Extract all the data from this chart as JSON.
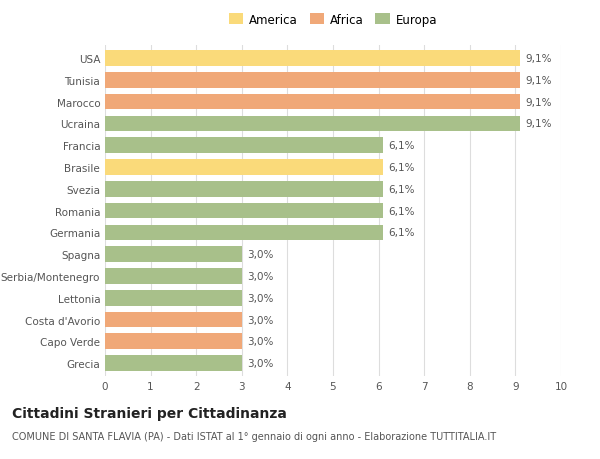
{
  "categories": [
    "USA",
    "Tunisia",
    "Marocco",
    "Ucraina",
    "Francia",
    "Brasile",
    "Svezia",
    "Romania",
    "Germania",
    "Spagna",
    "Serbia/Montenegro",
    "Lettonia",
    "Costa d'Avorio",
    "Capo Verde",
    "Grecia"
  ],
  "values": [
    9.1,
    9.1,
    9.1,
    9.1,
    6.1,
    6.1,
    6.1,
    6.1,
    6.1,
    3.0,
    3.0,
    3.0,
    3.0,
    3.0,
    3.0
  ],
  "labels": [
    "9,1%",
    "9,1%",
    "9,1%",
    "9,1%",
    "6,1%",
    "6,1%",
    "6,1%",
    "6,1%",
    "6,1%",
    "3,0%",
    "3,0%",
    "3,0%",
    "3,0%",
    "3,0%",
    "3,0%"
  ],
  "colors": [
    "#FADA7A",
    "#F0A878",
    "#F0A878",
    "#A8C08A",
    "#A8C08A",
    "#FADA7A",
    "#A8C08A",
    "#A8C08A",
    "#A8C08A",
    "#A8C08A",
    "#A8C08A",
    "#A8C08A",
    "#F0A878",
    "#F0A878",
    "#A8C08A"
  ],
  "legend_labels": [
    "America",
    "Africa",
    "Europa"
  ],
  "legend_colors": [
    "#FADA7A",
    "#F0A878",
    "#A8C08A"
  ],
  "title": "Cittadini Stranieri per Cittadinanza",
  "subtitle": "COMUNE DI SANTA FLAVIA (PA) - Dati ISTAT al 1° gennaio di ogni anno - Elaborazione TUTTITALIA.IT",
  "xlim": [
    0,
    10
  ],
  "xticks": [
    0,
    1,
    2,
    3,
    4,
    5,
    6,
    7,
    8,
    9,
    10
  ],
  "bg_color": "#FFFFFF",
  "grid_color": "#DDDDDD",
  "bar_height": 0.72,
  "label_fontsize": 7.5,
  "tick_fontsize": 7.5,
  "title_fontsize": 10,
  "subtitle_fontsize": 7.0,
  "legend_fontsize": 8.5
}
